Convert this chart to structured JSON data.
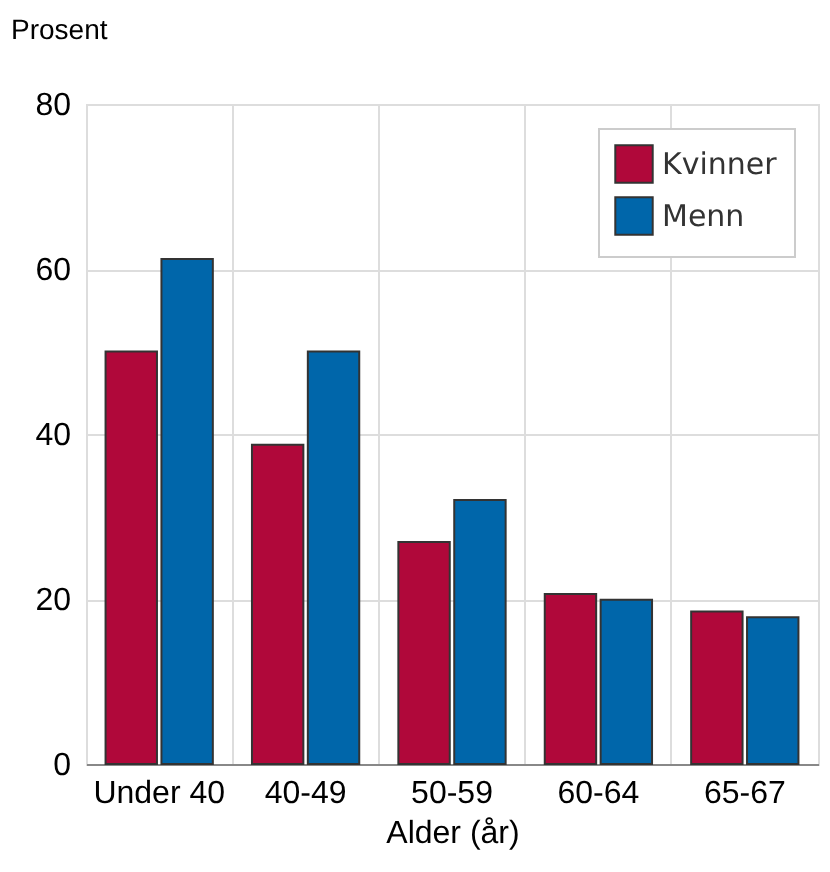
{
  "chart_data": {
    "type": "bar",
    "xlabel": "Alder (år)",
    "ylabel": "Prosent",
    "categories": [
      "Under 40",
      "40-49",
      "50-59",
      "60-64",
      "65-67"
    ],
    "series": [
      {
        "name": "Kvinner",
        "color": "#b0083a",
        "values": [
          50,
          38.7,
          26.9,
          20.6,
          18.5
        ]
      },
      {
        "name": "Menn",
        "color": "#0066aa",
        "values": [
          61.2,
          50,
          32.0,
          19.9,
          17.8
        ]
      }
    ],
    "ylim": [
      0,
      80
    ],
    "yticks": [
      0,
      20,
      40,
      60,
      80
    ],
    "grid": true,
    "legend": "top right"
  }
}
